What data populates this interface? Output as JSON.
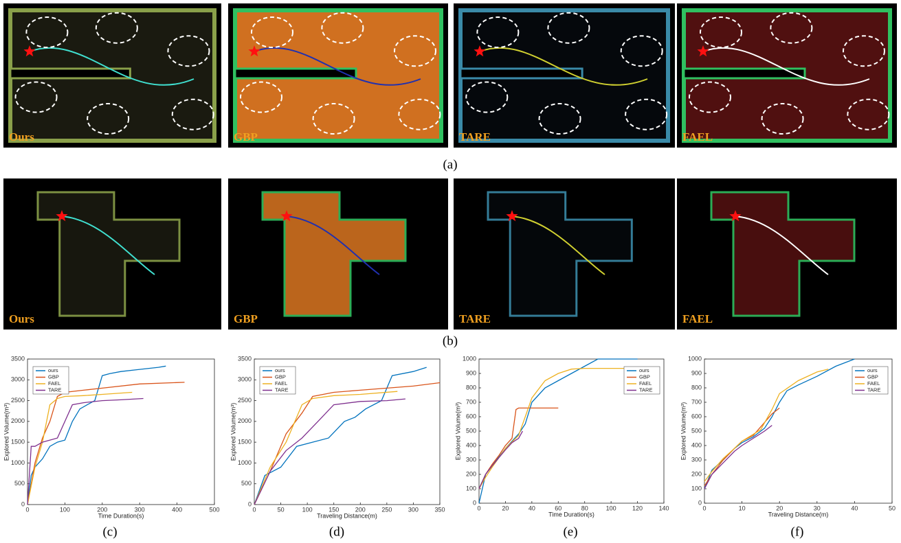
{
  "figure": {
    "row_a": {
      "labels": [
        "Ours",
        "GBP",
        "TARE",
        "FAEL"
      ],
      "caption": "(a)"
    },
    "row_b": {
      "labels": [
        "Ours",
        "GBP",
        "TARE",
        "FAEL"
      ],
      "caption": "(b)"
    }
  },
  "chart_data": [
    {
      "type": "line",
      "caption": "(c)",
      "xlabel": "Time Duration(s)",
      "ylabel": "Explored Volume(m³)",
      "xlim": [
        0,
        500
      ],
      "xticks": [
        0,
        100,
        200,
        300,
        400,
        500
      ],
      "ylim": [
        0,
        3500
      ],
      "yticks": [
        0,
        500,
        1000,
        1500,
        2000,
        2500,
        3000,
        3500
      ],
      "series": [
        {
          "name": "ours",
          "color": "#0072bd",
          "x": [
            0,
            10,
            20,
            40,
            60,
            80,
            100,
            120,
            140,
            160,
            180,
            200,
            220,
            250,
            300,
            350,
            370
          ],
          "values": [
            0,
            700,
            900,
            1100,
            1400,
            1500,
            1550,
            2000,
            2300,
            2400,
            2500,
            3100,
            3150,
            3200,
            3250,
            3300,
            3330
          ]
        },
        {
          "name": "GBP",
          "color": "#d95319",
          "x": [
            0,
            20,
            40,
            60,
            80,
            100,
            150,
            200,
            300,
            420
          ],
          "values": [
            0,
            1000,
            1600,
            2000,
            2600,
            2700,
            2750,
            2800,
            2900,
            2940
          ]
        },
        {
          "name": "FAEL",
          "color": "#edb120",
          "x": [
            0,
            20,
            40,
            60,
            80,
            100,
            150,
            200,
            280
          ],
          "values": [
            0,
            900,
            1500,
            2400,
            2550,
            2600,
            2620,
            2650,
            2700
          ]
        },
        {
          "name": "TARE",
          "color": "#7e2f8e",
          "x": [
            0,
            10,
            20,
            40,
            60,
            80,
            100,
            120,
            150,
            200,
            250,
            310
          ],
          "values": [
            0,
            1400,
            1400,
            1500,
            1550,
            1600,
            2000,
            2400,
            2450,
            2500,
            2520,
            2550
          ]
        }
      ]
    },
    {
      "type": "line",
      "caption": "(d)",
      "xlabel": "Traveling Distance(m)",
      "ylabel": "Explored Volume(m³)",
      "xlim": [
        0,
        350
      ],
      "xticks": [
        0,
        50,
        100,
        150,
        200,
        250,
        300,
        350
      ],
      "ylim": [
        0,
        3500
      ],
      "yticks": [
        0,
        500,
        1000,
        1500,
        2000,
        2500,
        3000,
        3500
      ],
      "series": [
        {
          "name": "ours",
          "color": "#0072bd",
          "x": [
            0,
            20,
            50,
            80,
            110,
            140,
            170,
            190,
            210,
            240,
            260,
            300,
            325
          ],
          "values": [
            0,
            700,
            900,
            1400,
            1500,
            1600,
            2000,
            2100,
            2300,
            2500,
            3100,
            3200,
            3300
          ]
        },
        {
          "name": "GBP",
          "color": "#d95319",
          "x": [
            0,
            30,
            60,
            90,
            110,
            150,
            200,
            250,
            300,
            350
          ],
          "values": [
            0,
            800,
            1700,
            2200,
            2600,
            2700,
            2750,
            2800,
            2850,
            2930
          ]
        },
        {
          "name": "FAEL",
          "color": "#edb120",
          "x": [
            0,
            30,
            60,
            90,
            110,
            150,
            200,
            270
          ],
          "values": [
            0,
            900,
            1500,
            2400,
            2550,
            2620,
            2650,
            2720
          ]
        },
        {
          "name": "TARE",
          "color": "#7e2f8e",
          "x": [
            0,
            30,
            60,
            90,
            120,
            150,
            200,
            250,
            285
          ],
          "values": [
            0,
            800,
            1300,
            1600,
            2000,
            2400,
            2480,
            2500,
            2540
          ]
        }
      ]
    },
    {
      "type": "line",
      "caption": "(e)",
      "xlabel": "Time Duration(s)",
      "ylabel": "Explored Volume(m³)",
      "xlim": [
        0,
        140
      ],
      "xticks": [
        0,
        20,
        40,
        60,
        80,
        100,
        120,
        140
      ],
      "ylim": [
        0,
        1000
      ],
      "yticks": [
        0,
        100,
        200,
        300,
        400,
        500,
        600,
        700,
        800,
        900,
        1000
      ],
      "series": [
        {
          "name": "ours",
          "color": "#0072bd",
          "x": [
            0,
            5,
            10,
            15,
            20,
            25,
            30,
            35,
            40,
            45,
            50,
            60,
            70,
            80,
            90,
            120
          ],
          "values": [
            0,
            200,
            260,
            320,
            380,
            430,
            480,
            550,
            700,
            750,
            800,
            850,
            900,
            950,
            1000,
            1000
          ]
        },
        {
          "name": "GBP",
          "color": "#d95319",
          "x": [
            0,
            5,
            10,
            15,
            20,
            25,
            28,
            30,
            60
          ],
          "values": [
            100,
            200,
            270,
            330,
            400,
            450,
            650,
            660,
            660
          ]
        },
        {
          "name": "FAEL",
          "color": "#edb120",
          "x": [
            0,
            5,
            10,
            20,
            30,
            35,
            40,
            50,
            60,
            70,
            80,
            120
          ],
          "values": [
            100,
            180,
            250,
            380,
            470,
            600,
            730,
            850,
            900,
            930,
            935,
            935
          ]
        },
        {
          "name": "TARE",
          "color": "#7e2f8e",
          "x": [
            0,
            5,
            10,
            20,
            25,
            30,
            33
          ],
          "values": [
            100,
            200,
            260,
            370,
            420,
            450,
            500
          ]
        }
      ]
    },
    {
      "type": "line",
      "caption": "(f)",
      "xlabel": "Traveling Distance(m)",
      "ylabel": "Explored Volume(m³)",
      "xlim": [
        0,
        50
      ],
      "xticks": [
        0,
        10,
        20,
        30,
        40,
        50
      ],
      "ylim": [
        0,
        1000
      ],
      "yticks": [
        0,
        100,
        200,
        300,
        400,
        500,
        600,
        700,
        800,
        900,
        1000
      ],
      "series": [
        {
          "name": "ours",
          "color": "#0072bd",
          "x": [
            0,
            2,
            5,
            8,
            10,
            13,
            16,
            18,
            20,
            22,
            25,
            30,
            35,
            40
          ],
          "values": [
            100,
            230,
            300,
            380,
            420,
            460,
            520,
            600,
            700,
            780,
            820,
            880,
            950,
            1000
          ]
        },
        {
          "name": "GBP",
          "color": "#d95319",
          "x": [
            0,
            2,
            5,
            8,
            10,
            13,
            16,
            18,
            20
          ],
          "values": [
            120,
            200,
            300,
            380,
            430,
            470,
            560,
            620,
            660
          ]
        },
        {
          "name": "FAEL",
          "color": "#edb120",
          "x": [
            0,
            2,
            5,
            8,
            10,
            15,
            18,
            20,
            25,
            30,
            33
          ],
          "values": [
            150,
            220,
            310,
            380,
            430,
            510,
            650,
            760,
            850,
            910,
            930
          ]
        },
        {
          "name": "TARE",
          "color": "#7e2f8e",
          "x": [
            0,
            2,
            5,
            8,
            10,
            13,
            16,
            18
          ],
          "values": [
            100,
            200,
            280,
            360,
            400,
            450,
            500,
            540
          ]
        }
      ]
    }
  ]
}
